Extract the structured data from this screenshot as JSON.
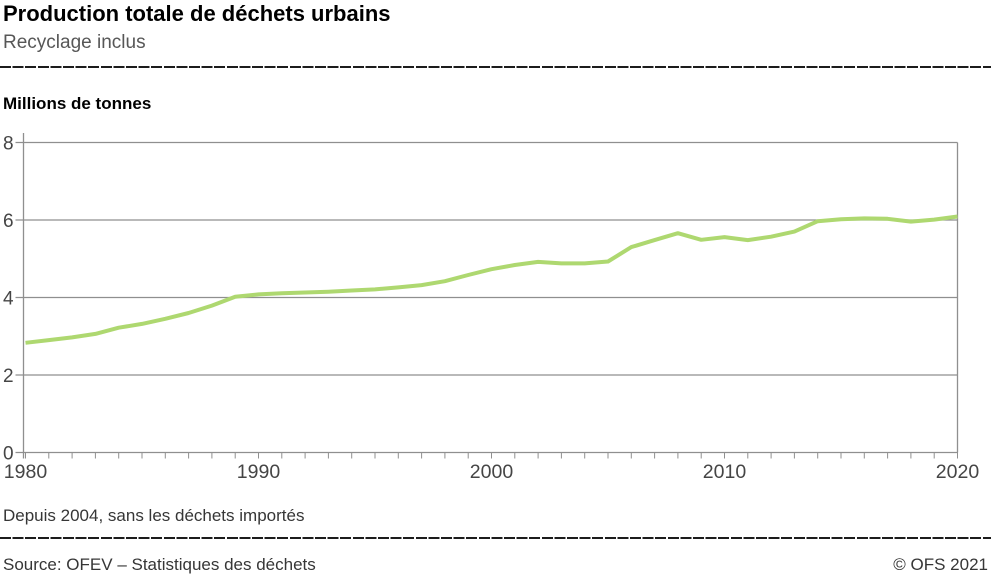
{
  "header": {
    "title": "Production totale de déchets urbains",
    "subtitle": "Recyclage inclus"
  },
  "footnote": "Depuis 2004, sans les déchets importés",
  "footer": {
    "source": "Source: OFEV – Statistiques des déchets",
    "copyright": "© OFS 2021"
  },
  "chart_data": {
    "type": "line",
    "title": "Production totale de déchets urbains",
    "subtitle": "Recyclage inclus",
    "ylabel": "Millions de tonnes",
    "xlabel": "",
    "xlim": [
      1980,
      2020
    ],
    "ylim": [
      0,
      8
    ],
    "yticks": [
      0,
      2,
      4,
      6,
      8
    ],
    "xticks": [
      1980,
      1990,
      2000,
      2010,
      2020
    ],
    "x_minor_tick_step": 1,
    "grid": "horizontal",
    "legend": "none",
    "line_color": "#aed870",
    "grid_color": "#8f8f8f",
    "tick_label_color": "#454545",
    "series": [
      {
        "name": "Production totale de déchets urbains, recyclage inclus",
        "x": [
          1980,
          1981,
          1982,
          1983,
          1984,
          1985,
          1986,
          1987,
          1988,
          1989,
          1990,
          1991,
          1992,
          1993,
          1994,
          1995,
          1996,
          1997,
          1998,
          1999,
          2000,
          2001,
          2002,
          2003,
          2004,
          2005,
          2006,
          2007,
          2008,
          2009,
          2010,
          2011,
          2012,
          2013,
          2014,
          2015,
          2016,
          2017,
          2018,
          2019,
          2020
        ],
        "values": [
          2.83,
          2.9,
          2.97,
          3.06,
          3.22,
          3.32,
          3.45,
          3.6,
          3.79,
          4.02,
          4.08,
          4.11,
          4.13,
          4.15,
          4.18,
          4.21,
          4.26,
          4.32,
          4.42,
          4.58,
          4.73,
          4.84,
          4.92,
          4.88,
          4.88,
          4.93,
          5.3,
          5.48,
          5.66,
          5.49,
          5.56,
          5.48,
          5.57,
          5.7,
          5.97,
          6.02,
          6.04,
          6.03,
          5.96,
          6.01,
          6.09
        ]
      }
    ]
  }
}
